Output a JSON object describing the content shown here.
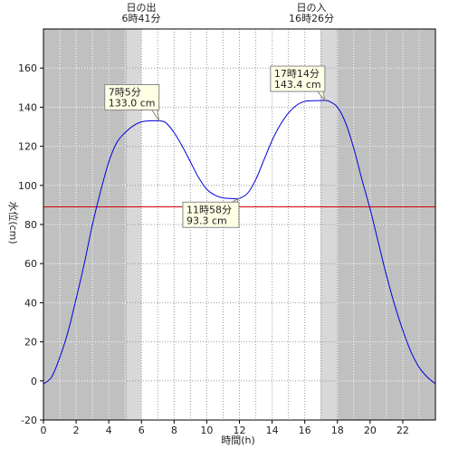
{
  "chart_data": {
    "type": "line",
    "xlabel": "時間(h)",
    "ylabel": "水位(cm)",
    "xlim": [
      0,
      24
    ],
    "ylim": [
      -20,
      180
    ],
    "xticks": [
      0,
      2,
      4,
      6,
      8,
      10,
      12,
      14,
      16,
      18,
      20,
      22
    ],
    "yticks": [
      -20,
      0,
      20,
      40,
      60,
      80,
      100,
      120,
      140,
      160
    ],
    "grid": "dotted",
    "reference_line": {
      "y": 89,
      "color": "#d40000"
    },
    "sunrise": {
      "label": "日の出",
      "time": "6時41分",
      "x": 6.68
    },
    "sunset": {
      "label": "日の入",
      "time": "16時26分",
      "x": 16.43
    },
    "shading": {
      "night_color": "#c0c0c0",
      "twilight_color": "#d8d8d8",
      "day_color": "#ffffff",
      "twilight_before_sunrise": [
        5.1,
        6.0
      ],
      "twilight_after_sunset": [
        16.95,
        17.95
      ]
    },
    "series": [
      {
        "color": "#0000dd",
        "x": [
          0,
          0.5,
          1,
          1.5,
          2,
          2.5,
          3,
          3.5,
          4,
          4.5,
          5,
          5.5,
          6,
          6.5,
          7.08,
          7.5,
          8,
          8.5,
          9,
          9.5,
          10,
          10.5,
          11,
          11.5,
          11.97,
          12.5,
          13,
          13.5,
          14,
          14.5,
          15,
          15.5,
          16,
          16.5,
          17.23,
          17.5,
          18,
          18.5,
          19,
          19.5,
          20,
          20.5,
          21,
          21.5,
          22,
          22.5,
          23,
          23.5,
          24
        ],
        "y": [
          -1.5,
          2,
          12,
          25,
          42,
          60,
          80,
          97,
          112,
          122,
          127,
          130.5,
          132.5,
          133,
          133.0,
          132,
          127,
          120,
          112,
          104,
          98,
          95,
          93.6,
          93.3,
          93.3,
          96,
          103,
          113,
          123,
          131,
          137,
          141,
          143,
          143.3,
          143.4,
          143,
          140,
          132,
          119,
          103,
          88,
          71,
          54,
          39,
          26,
          15,
          7,
          2,
          -1.5
        ]
      }
    ],
    "annotations": [
      {
        "lines": [
          "7時5分",
          "133.0 cm"
        ],
        "x": 7.08,
        "y": 133.0
      },
      {
        "lines": [
          "11時58分",
          "93.3 cm"
        ],
        "x": 11.97,
        "y": 93.3
      },
      {
        "lines": [
          "17時14分",
          "143.4 cm"
        ],
        "x": 17.23,
        "y": 143.4
      }
    ]
  }
}
